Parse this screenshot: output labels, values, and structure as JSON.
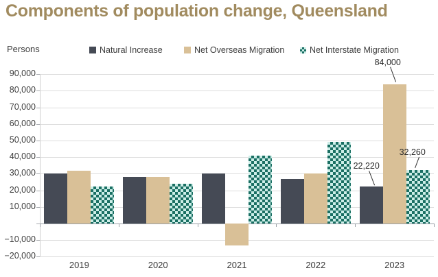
{
  "title": "Components of population change, Queensland",
  "y_axis_label": "Persons",
  "legend": [
    {
      "label": "Natural Increase",
      "swatch": "solid-dark-square"
    },
    {
      "label": "Net Overseas Migration",
      "swatch": "solid-tan-square"
    },
    {
      "label": "Net Interstate Migration",
      "swatch": "teal-checker-square"
    }
  ],
  "colors": {
    "title": "#a18b5f",
    "natural_increase": "#454a55",
    "net_overseas_migration": "#d9c097",
    "net_interstate_dark": "#1a6f63",
    "net_interstate_light": "#cdeee8",
    "gridline": "#dcdcdc",
    "zero_axis": "#9aa0a6",
    "text": "#3c3c3c"
  },
  "chart_data": {
    "type": "bar",
    "title": "Components of population change, Queensland",
    "xlabel": "",
    "ylabel": "Persons",
    "categories": [
      "2019",
      "2020",
      "2021",
      "2022",
      "2023"
    ],
    "series": [
      {
        "name": "Natural Increase",
        "values": [
          30000,
          28300,
          30000,
          27000,
          22220
        ]
      },
      {
        "name": "Net Overseas Migration",
        "values": [
          32000,
          28000,
          -13000,
          30000,
          84000
        ]
      },
      {
        "name": "Net Interstate Migration",
        "values": [
          22300,
          24000,
          41000,
          49000,
          32260
        ]
      }
    ],
    "ylim": [
      -20000,
      90000
    ],
    "ytick_step": 10000,
    "zero_tick_unlabeled": true,
    "grid": true,
    "legend_position": "top",
    "annotations": [
      {
        "text": "22,220",
        "series": 0,
        "category": "2023"
      },
      {
        "text": "84,000",
        "series": 1,
        "category": "2023"
      },
      {
        "text": "32,260",
        "series": 2,
        "category": "2023"
      }
    ]
  }
}
